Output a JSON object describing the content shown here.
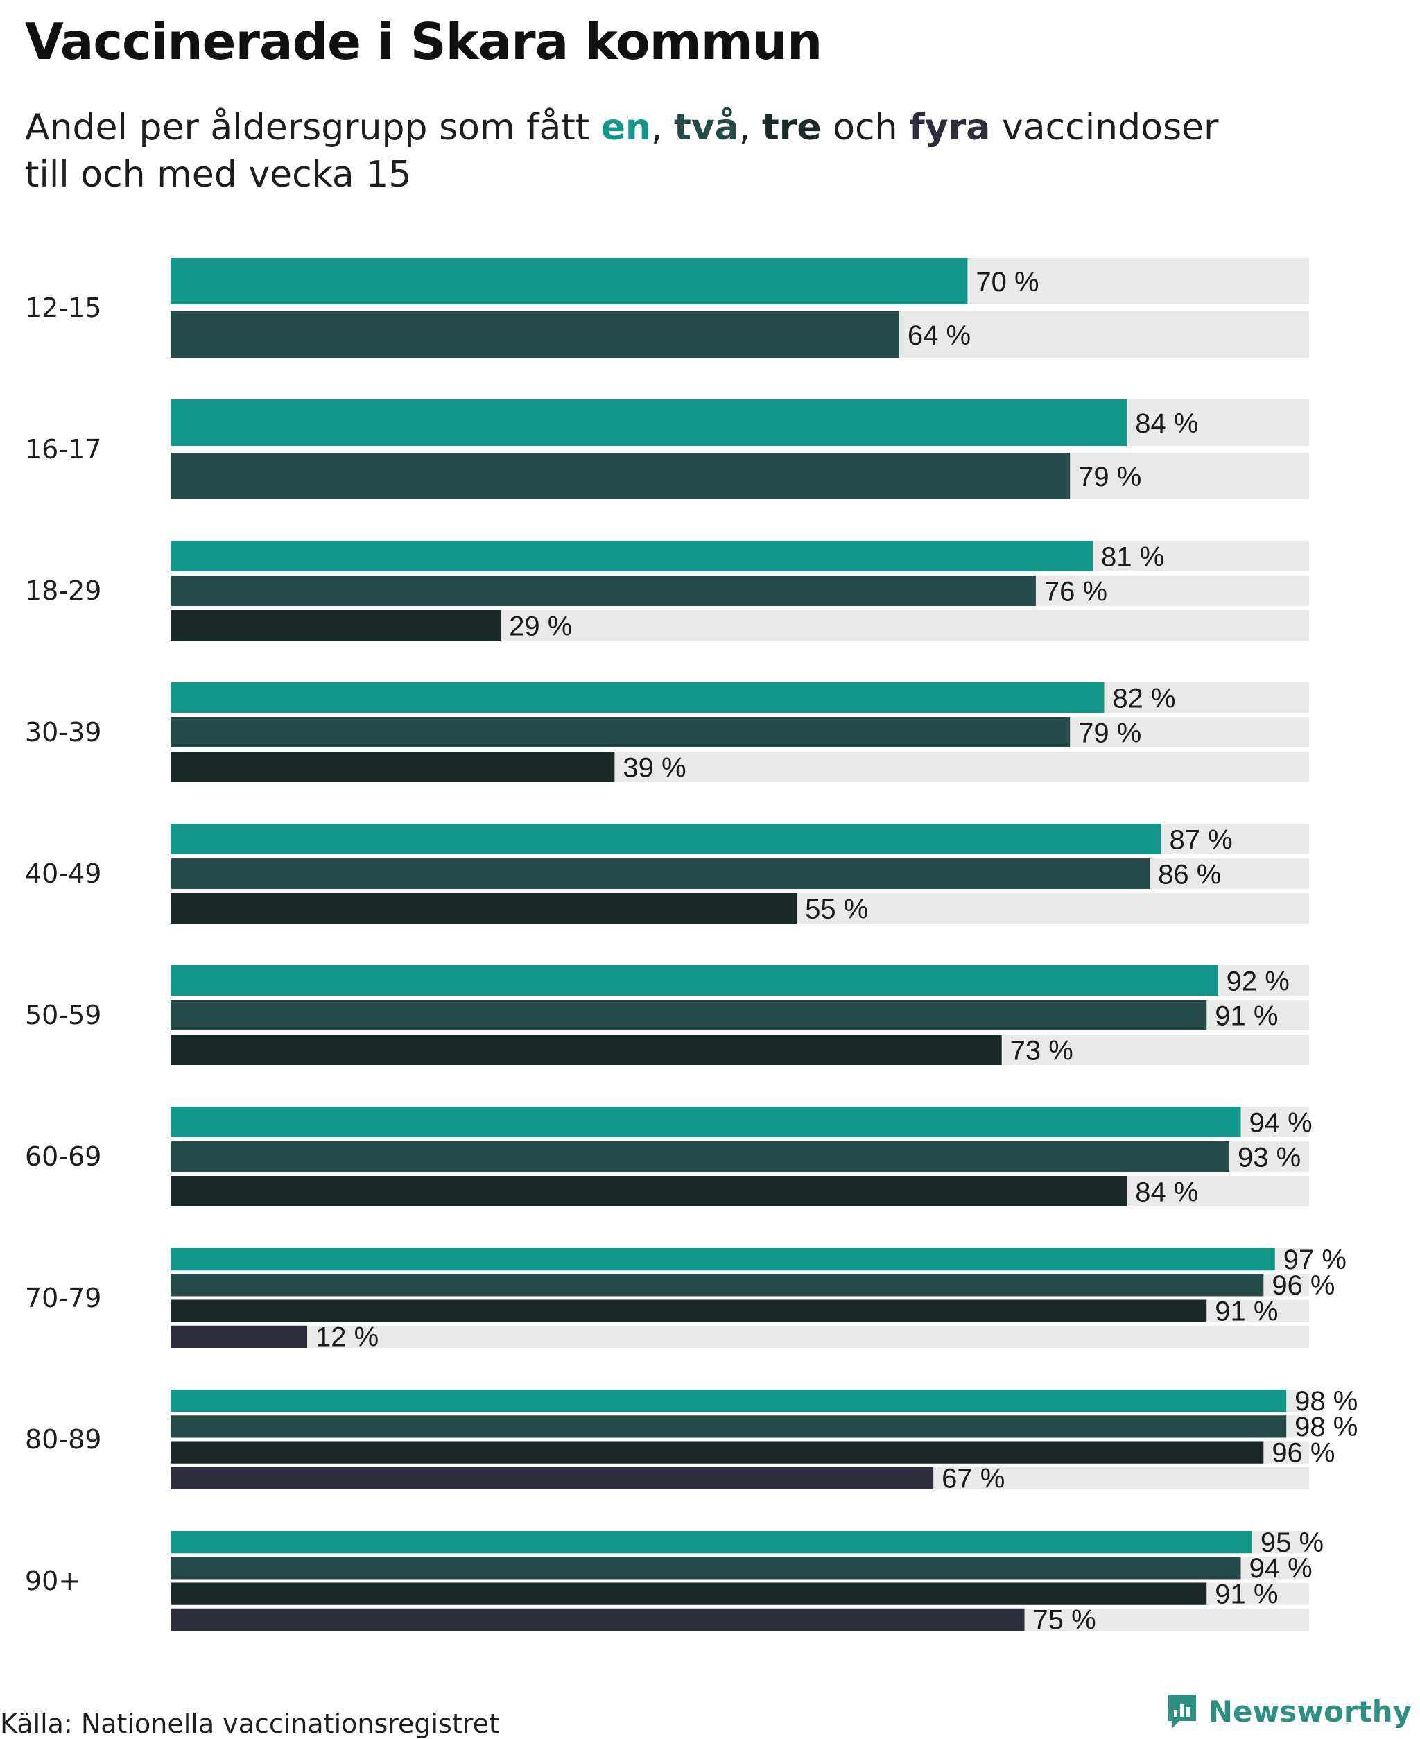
{
  "title": "Vaccinerade i Skara kommun",
  "subtitle": {
    "before": "Andel per åldersgrupp som fått ",
    "en": "en",
    "sep1": ", ",
    "tva": "två",
    "sep2": ", ",
    "tre": "tre",
    "och": " och ",
    "fyra": "fyra",
    "after_line1": " vaccindoser",
    "line2": "till och med vecka 15"
  },
  "source": "Källa: Nationella vaccinationsregistret",
  "brand": "Newsworthy",
  "colors": {
    "dose1": "#13968a",
    "dose2": "#264a47",
    "dose3": "#1b2a28",
    "dose4": "#2e2d3d",
    "track": "#e9e9e9"
  },
  "chart_data": {
    "type": "bar",
    "orientation": "horizontal",
    "title": "Vaccinerade i Skara kommun",
    "xlim": [
      0,
      100
    ],
    "unit_suffix": " %",
    "series": [
      {
        "name": "en",
        "color": "#13968a"
      },
      {
        "name": "två",
        "color": "#264a47"
      },
      {
        "name": "tre",
        "color": "#1b2a28"
      },
      {
        "name": "fyra",
        "color": "#2e2d3d"
      }
    ],
    "groups": [
      {
        "label": "12-15",
        "values": [
          70,
          64
        ]
      },
      {
        "label": "16-17",
        "values": [
          84,
          79
        ]
      },
      {
        "label": "18-29",
        "values": [
          81,
          76,
          29
        ]
      },
      {
        "label": "30-39",
        "values": [
          82,
          79,
          39
        ]
      },
      {
        "label": "40-49",
        "values": [
          87,
          86,
          55
        ]
      },
      {
        "label": "50-59",
        "values": [
          92,
          91,
          73
        ]
      },
      {
        "label": "60-69",
        "values": [
          94,
          93,
          84
        ]
      },
      {
        "label": "70-79",
        "values": [
          97,
          96,
          91,
          12
        ]
      },
      {
        "label": "80-89",
        "values": [
          98,
          98,
          96,
          67
        ]
      },
      {
        "label": "90+",
        "values": [
          95,
          94,
          91,
          75
        ]
      }
    ]
  }
}
